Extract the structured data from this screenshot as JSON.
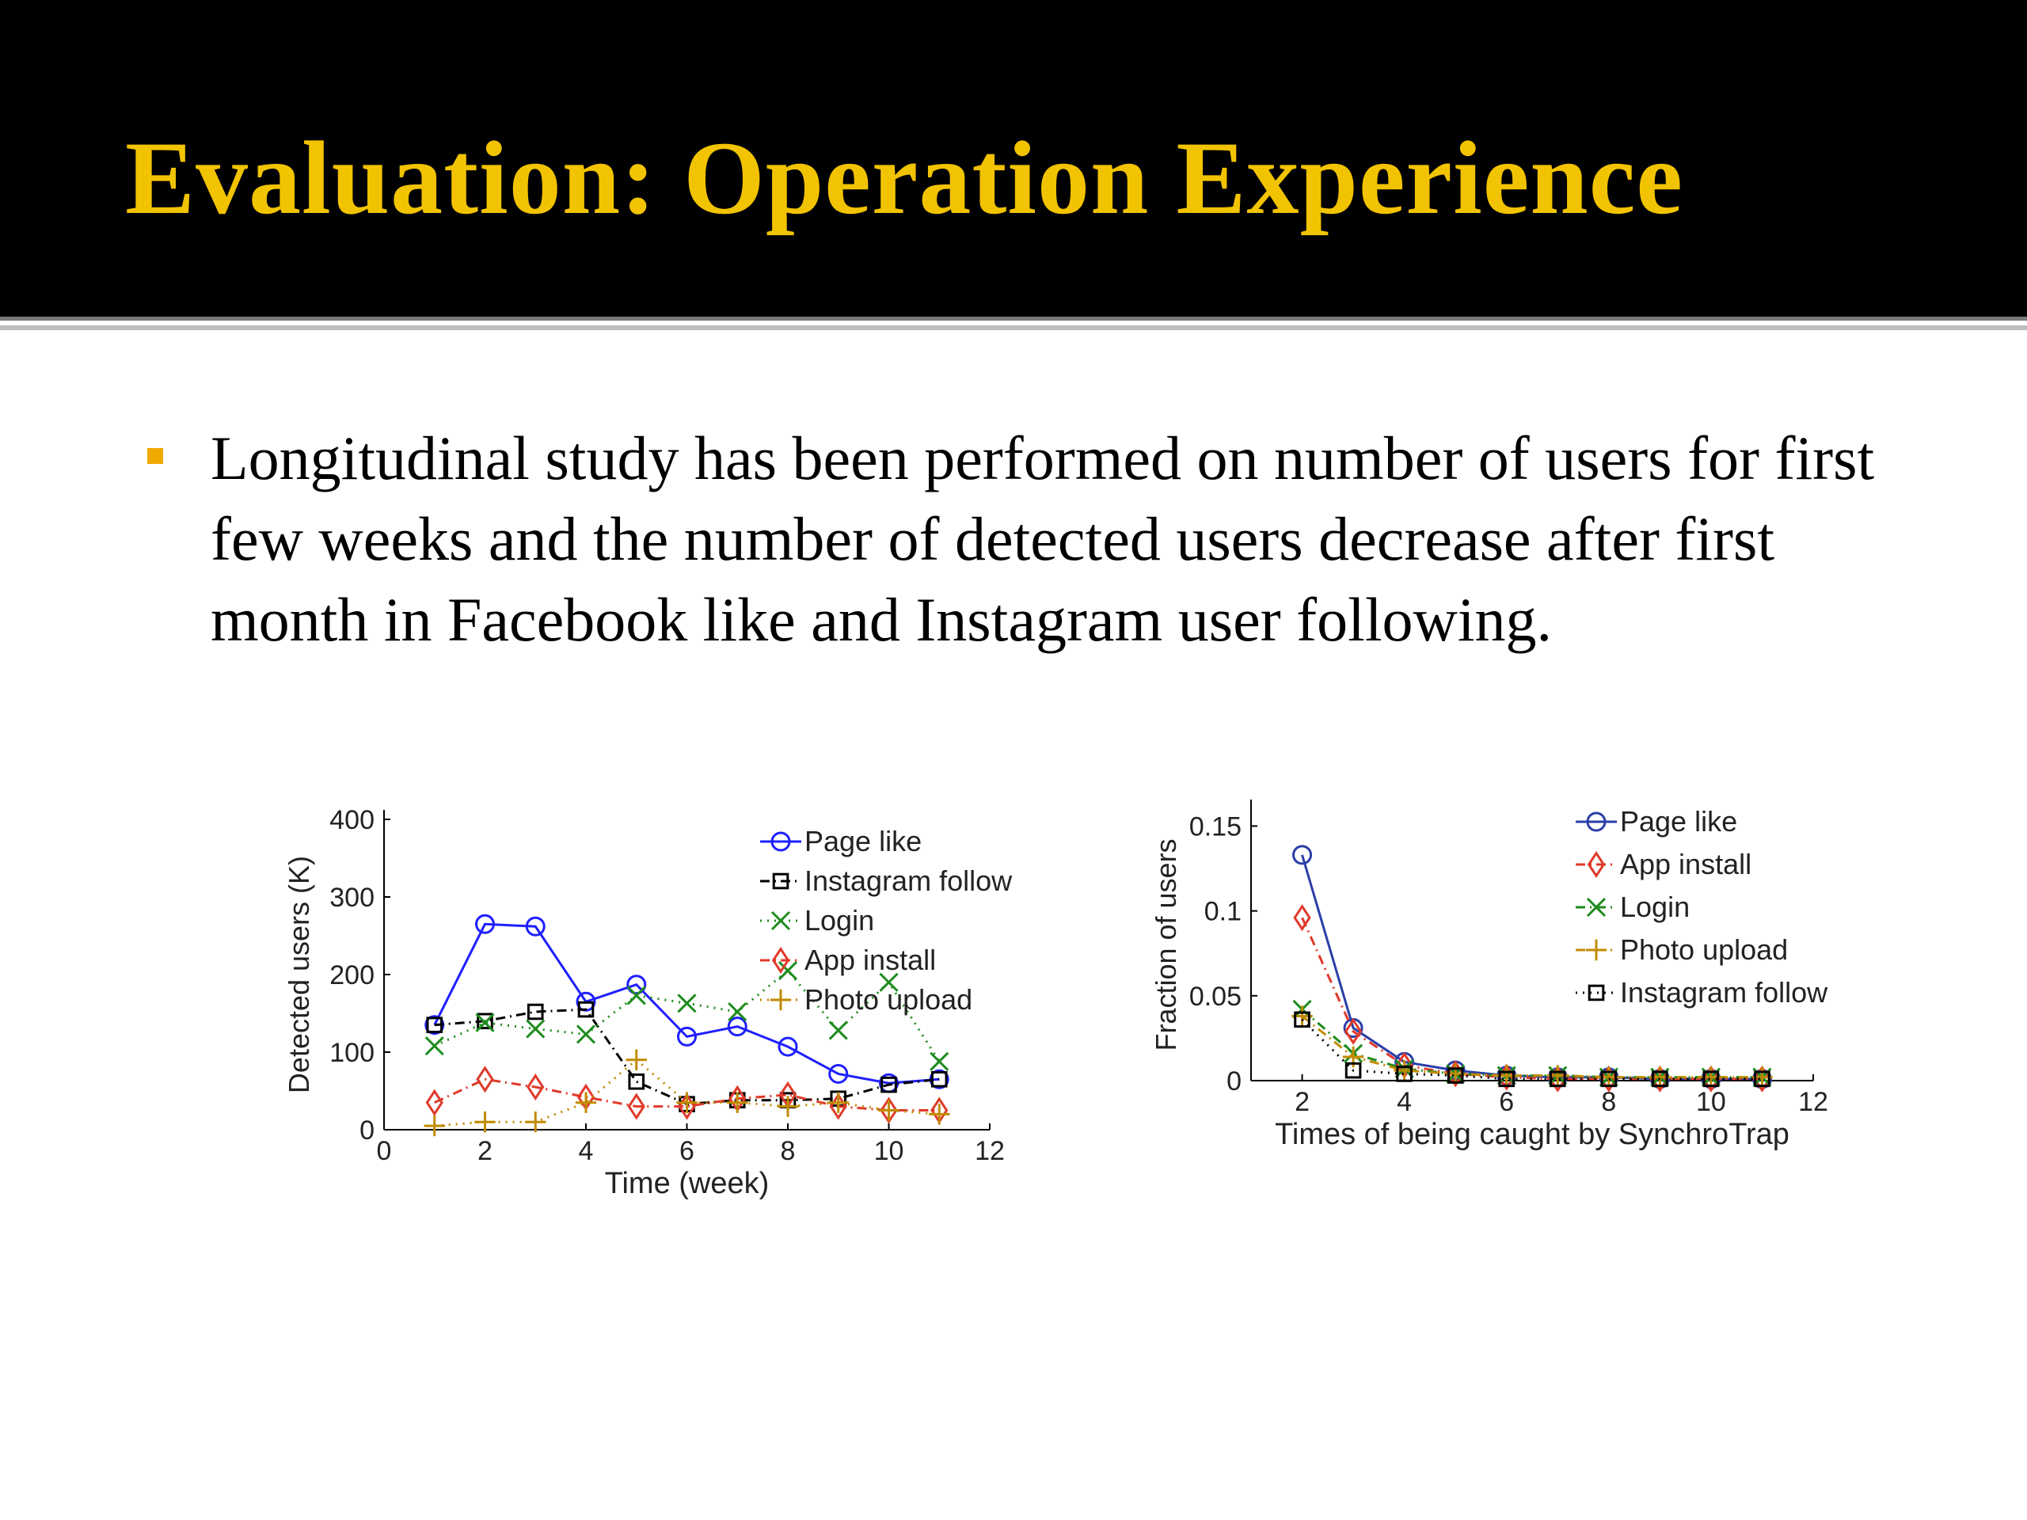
{
  "slide": {
    "title": "Evaluation: Operation Experience",
    "bullet": "Longitudinal study has been performed on number of users for first few weeks and the number of detected users decrease after first month in Facebook like and Instagram user following.",
    "colors": {
      "title_bar": "#000000",
      "title_text": "#f2c300",
      "bullet_marker": "#f2a900"
    }
  },
  "chart_data": [
    {
      "type": "line",
      "title": "",
      "xlabel": "Time (week)",
      "ylabel": "Detected users (K)",
      "xlim": [
        0,
        12
      ],
      "ylim": [
        0,
        400
      ],
      "xticks": [
        0,
        2,
        4,
        6,
        8,
        10,
        12
      ],
      "yticks": [
        0,
        100,
        200,
        300,
        400
      ],
      "grid": false,
      "legend_position": "top-right",
      "x": [
        1,
        2,
        3,
        4,
        5,
        6,
        7,
        8,
        9,
        10,
        11
      ],
      "series": [
        {
          "name": "Page like",
          "color": "#1f1fff",
          "marker": "circle",
          "line": "solid",
          "values": [
            135,
            265,
            262,
            165,
            187,
            120,
            133,
            107,
            72,
            60,
            65
          ]
        },
        {
          "name": "Instagram follow",
          "color": "#000000",
          "marker": "square",
          "line": "dashdot",
          "values": [
            135,
            140,
            152,
            155,
            62,
            33,
            38,
            38,
            40,
            58,
            65
          ]
        },
        {
          "name": "Login",
          "color": "#1e8c1e",
          "marker": "x",
          "line": "dotted",
          "values": [
            108,
            138,
            130,
            123,
            173,
            163,
            152,
            205,
            128,
            190,
            88
          ]
        },
        {
          "name": "App install",
          "color": "#e03a2a",
          "marker": "diamond",
          "line": "dashdot",
          "values": [
            35,
            65,
            55,
            42,
            30,
            30,
            40,
            45,
            30,
            25,
            25
          ]
        },
        {
          "name": "Photo upload",
          "color": "#c08b00",
          "marker": "plus",
          "line": "dotted",
          "values": [
            5,
            10,
            10,
            35,
            90,
            35,
            35,
            30,
            35,
            25,
            20
          ]
        }
      ]
    },
    {
      "type": "line",
      "title": "",
      "xlabel": "Times of being caught by SynchroTrap",
      "ylabel": "Fraction of users",
      "xlim": [
        1,
        12
      ],
      "ylim": [
        0,
        0.16
      ],
      "xticks": [
        2,
        4,
        6,
        8,
        10,
        12
      ],
      "yticks": [
        0,
        0.05,
        0.1,
        0.15
      ],
      "ytick_labels": [
        "0",
        "0.05",
        "0.1",
        "0.15"
      ],
      "grid": false,
      "legend_position": "top-right",
      "x": [
        2,
        3,
        4,
        5,
        6,
        7,
        8,
        9,
        10,
        11
      ],
      "series": [
        {
          "name": "Page like",
          "color": "#2b3ea8",
          "marker": "circle",
          "line": "solid",
          "values": [
            0.133,
            0.031,
            0.011,
            0.006,
            0.003,
            0.002,
            0.002,
            0.001,
            0.001,
            0.001
          ]
        },
        {
          "name": "App install",
          "color": "#e03a2a",
          "marker": "diamond",
          "line": "dashdot",
          "values": [
            0.096,
            0.029,
            0.009,
            0.004,
            0.002,
            0.001,
            0.001,
            0.001,
            0.001,
            0.001
          ]
        },
        {
          "name": "Login",
          "color": "#1e8c1e",
          "marker": "x",
          "line": "dashdot",
          "values": [
            0.042,
            0.016,
            0.007,
            0.004,
            0.003,
            0.003,
            0.002,
            0.002,
            0.002,
            0.002
          ]
        },
        {
          "name": "Photo upload",
          "color": "#c08b00",
          "marker": "plus",
          "line": "dashdot",
          "values": [
            0.038,
            0.014,
            0.006,
            0.004,
            0.003,
            0.003,
            0.002,
            0.002,
            0.002,
            0.002
          ]
        },
        {
          "name": "Instagram follow",
          "color": "#000000",
          "marker": "square",
          "line": "dotted",
          "values": [
            0.036,
            0.006,
            0.004,
            0.003,
            0.001,
            0.001,
            0.001,
            0.001,
            0.001,
            0.001
          ]
        }
      ]
    }
  ]
}
